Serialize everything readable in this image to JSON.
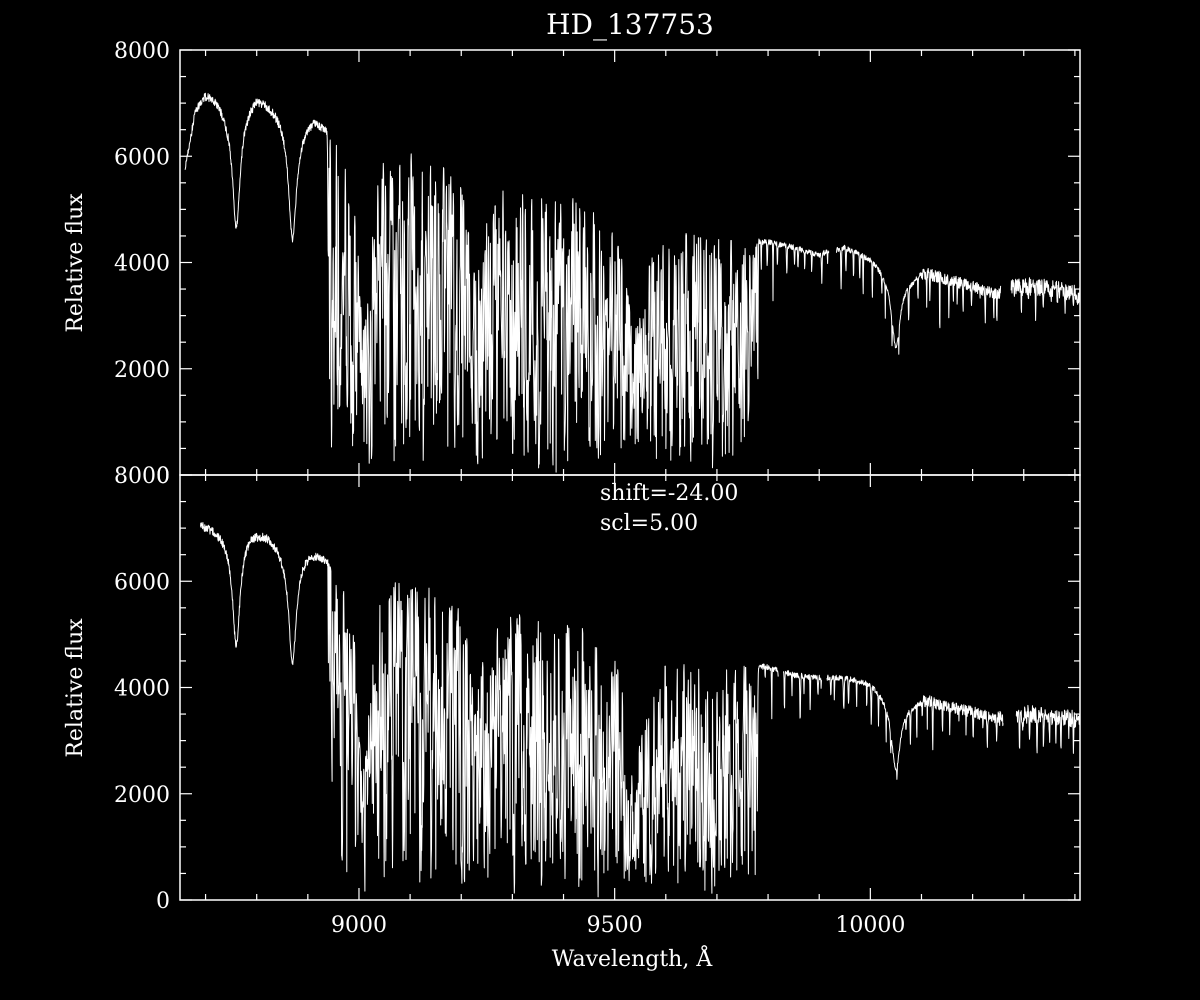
{
  "chart_data": {
    "type": "line",
    "title": "HD_137753",
    "xlabel": "Wavelength, Å",
    "ylabel": "Relative flux",
    "xlim": [
      8650,
      10410
    ],
    "ylim": [
      0,
      8000
    ],
    "x_ticks": [
      9000,
      9500,
      10000
    ],
    "x_tick_labels": [
      "9000",
      "9500",
      "10000"
    ],
    "y_ticks": [
      0,
      2000,
      4000,
      6000,
      8000
    ],
    "y_tick_labels": [
      "0",
      "2000",
      "4000",
      "6000",
      "8000"
    ],
    "x_minor_step": 100,
    "y_minor_step": 500,
    "grid": false,
    "panels": [
      {
        "id": "top",
        "annotations": [],
        "continuum": [
          [
            8660,
            5800
          ],
          [
            8680,
            6900
          ],
          [
            8700,
            7200
          ],
          [
            8720,
            7150
          ],
          [
            8740,
            6900
          ],
          [
            8760,
            6900
          ],
          [
            8780,
            7000
          ],
          [
            8800,
            7200
          ],
          [
            8830,
            7000
          ],
          [
            8860,
            6750
          ],
          [
            8880,
            6600
          ],
          [
            8910,
            6800
          ],
          [
            8950,
            6600
          ],
          [
            8970,
            6200
          ],
          [
            9000,
            6250
          ],
          [
            9030,
            6300
          ],
          [
            9060,
            6400
          ],
          [
            9100,
            6200
          ],
          [
            9150,
            5950
          ],
          [
            9200,
            5850
          ],
          [
            9225,
            5200
          ],
          [
            9250,
            5600
          ],
          [
            9300,
            5500
          ],
          [
            9350,
            5300
          ],
          [
            9400,
            5300
          ],
          [
            9450,
            5200
          ],
          [
            9500,
            5000
          ],
          [
            9550,
            4650
          ],
          [
            9600,
            4700
          ],
          [
            9650,
            4600
          ],
          [
            9700,
            4550
          ],
          [
            9750,
            4450
          ],
          [
            9800,
            4400
          ],
          [
            9850,
            4300
          ],
          [
            9900,
            4150
          ],
          [
            9910,
            4200
          ],
          [
            9950,
            4300
          ],
          [
            10000,
            4100
          ],
          [
            10050,
            3700
          ],
          [
            10080,
            3700
          ],
          [
            10100,
            3850
          ],
          [
            10150,
            3700
          ],
          [
            10200,
            3550
          ],
          [
            10250,
            3400
          ],
          [
            10280,
            3550
          ],
          [
            10320,
            3550
          ],
          [
            10360,
            3500
          ],
          [
            10410,
            3400
          ]
        ],
        "gaps": [
          [
            9920,
            9933
          ],
          [
            10255,
            10275
          ]
        ],
        "broad_lines": [
          {
            "center": 8760,
            "depth": 0.32,
            "width": 9
          },
          {
            "center": 8870,
            "depth": 0.33,
            "width": 9
          },
          {
            "center": 9010,
            "depth": 0.55,
            "width": 14
          },
          {
            "center": 9230,
            "depth": 0.28,
            "width": 18
          },
          {
            "center": 9540,
            "depth": 0.42,
            "width": 22
          },
          {
            "center": 10050,
            "depth": 0.35,
            "width": 10
          }
        ],
        "telluric_band": [
          8940,
          9780
        ],
        "telluric_core": [
          9300,
          9720
        ],
        "noise": 0.012,
        "seed": 7
      },
      {
        "id": "bottom",
        "annotations": [
          "shift=-24.00",
          "scl=5.00"
        ],
        "continuum": [
          [
            8690,
            7100
          ],
          [
            8720,
            7000
          ],
          [
            8740,
            6900
          ],
          [
            8760,
            6900
          ],
          [
            8790,
            7000
          ],
          [
            8820,
            6950
          ],
          [
            8850,
            6700
          ],
          [
            8880,
            6600
          ],
          [
            8910,
            6650
          ],
          [
            8950,
            6500
          ],
          [
            8970,
            6200
          ],
          [
            9000,
            6200
          ],
          [
            9030,
            6150
          ],
          [
            9060,
            6250
          ],
          [
            9100,
            6100
          ],
          [
            9150,
            5950
          ],
          [
            9200,
            5800
          ],
          [
            9225,
            5300
          ],
          [
            9250,
            5550
          ],
          [
            9300,
            5500
          ],
          [
            9350,
            5300
          ],
          [
            9400,
            5300
          ],
          [
            9450,
            5200
          ],
          [
            9500,
            5000
          ],
          [
            9550,
            4650
          ],
          [
            9600,
            4700
          ],
          [
            9650,
            4600
          ],
          [
            9700,
            4550
          ],
          [
            9750,
            4450
          ],
          [
            9800,
            4400
          ],
          [
            9850,
            4250
          ],
          [
            9890,
            4200
          ],
          [
            9950,
            4200
          ],
          [
            10000,
            4100
          ],
          [
            10050,
            3700
          ],
          [
            10080,
            3700
          ],
          [
            10110,
            3800
          ],
          [
            10150,
            3650
          ],
          [
            10200,
            3550
          ],
          [
            10250,
            3400
          ],
          [
            10290,
            3500
          ],
          [
            10320,
            3500
          ],
          [
            10360,
            3450
          ],
          [
            10410,
            3400
          ]
        ],
        "gaps": [
          [
            9820,
            9830
          ],
          [
            9905,
            9915
          ],
          [
            10260,
            10285
          ]
        ],
        "broad_lines": [
          {
            "center": 8760,
            "depth": 0.3,
            "width": 9
          },
          {
            "center": 8870,
            "depth": 0.32,
            "width": 9
          },
          {
            "center": 9010,
            "depth": 0.55,
            "width": 14
          },
          {
            "center": 9230,
            "depth": 0.26,
            "width": 18
          },
          {
            "center": 9540,
            "depth": 0.42,
            "width": 22
          },
          {
            "center": 10050,
            "depth": 0.34,
            "width": 10
          }
        ],
        "telluric_band": [
          8940,
          9780
        ],
        "telluric_core": [
          9300,
          9720
        ],
        "noise": 0.012,
        "seed": 19
      }
    ]
  }
}
